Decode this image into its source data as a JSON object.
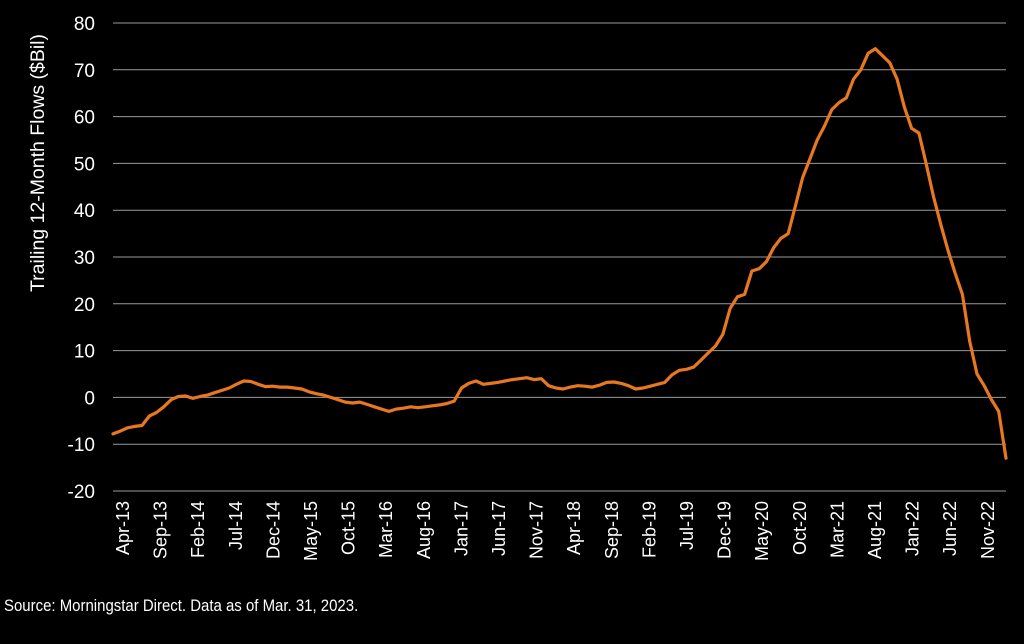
{
  "chart_data": {
    "type": "line",
    "title": "",
    "xlabel": "",
    "ylabel": "Trailing 12-Month Flows ($Bil)",
    "ylim": [
      -20,
      80
    ],
    "yticks": [
      80,
      70,
      60,
      50,
      40,
      30,
      20,
      10,
      0,
      -10,
      -20
    ],
    "xtick_labels": [
      "Apr-13",
      "Sep-13",
      "Feb-14",
      "Jul-14",
      "Dec-14",
      "May-15",
      "Oct-15",
      "Mar-16",
      "Aug-16",
      "Jan-17",
      "Jun-17",
      "Nov-17",
      "Apr-18",
      "Sep-18",
      "Feb-19",
      "Jul-19",
      "Dec-19",
      "May-20",
      "Oct-20",
      "Mar-21",
      "Aug-21",
      "Jan-22",
      "Jun-22",
      "Nov-22"
    ],
    "grid": true,
    "line_color": "#E87722",
    "series": [
      {
        "values": [
          -7.8,
          -7.2,
          -6.5,
          -6.2,
          -6.0,
          -4.0,
          -3.2,
          -2.0,
          -0.5,
          0.2,
          0.3,
          -0.2,
          0.2,
          0.5,
          1.0,
          1.5,
          2.0,
          2.8,
          3.5,
          3.4,
          2.8,
          2.3,
          2.4,
          2.2,
          2.2,
          2.0,
          1.8,
          1.2,
          0.8,
          0.5,
          0.0,
          -0.5,
          -1.0,
          -1.2,
          -1.0,
          -1.5,
          -2.0,
          -2.5,
          -3.0,
          -2.5,
          -2.3,
          -2.0,
          -2.2,
          -2.0,
          -1.8,
          -1.6,
          -1.3,
          -0.8,
          2.0,
          3.0,
          3.5,
          2.8,
          3.0,
          3.2,
          3.5,
          3.8,
          4.0,
          4.2,
          3.8,
          4.0,
          2.5,
          2.0,
          1.8,
          2.2,
          2.5,
          2.4,
          2.2,
          2.6,
          3.2,
          3.3,
          3.0,
          2.5,
          1.8,
          2.0,
          2.4,
          2.8,
          3.2,
          4.8,
          5.8,
          6.0,
          6.5,
          8.0,
          9.5,
          11.0,
          13.5,
          19.0,
          21.5,
          22.0,
          27.0,
          27.5,
          29.0,
          32.0,
          34.0,
          35.0,
          41.0,
          47.0,
          51.0,
          55.0,
          58.0,
          61.5,
          63.0,
          64.0,
          68.0,
          70.0,
          73.5,
          74.5,
          73.0,
          71.5,
          68.0,
          62.0,
          57.5,
          56.5,
          50.0,
          43.0,
          37.0,
          31.5,
          26.5,
          22.0,
          12.0,
          5.0,
          2.5,
          -0.5,
          -3.0,
          -13.0
        ]
      }
    ]
  },
  "source": "Source: Morningstar Direct. Data as of Mar. 31, 2023."
}
